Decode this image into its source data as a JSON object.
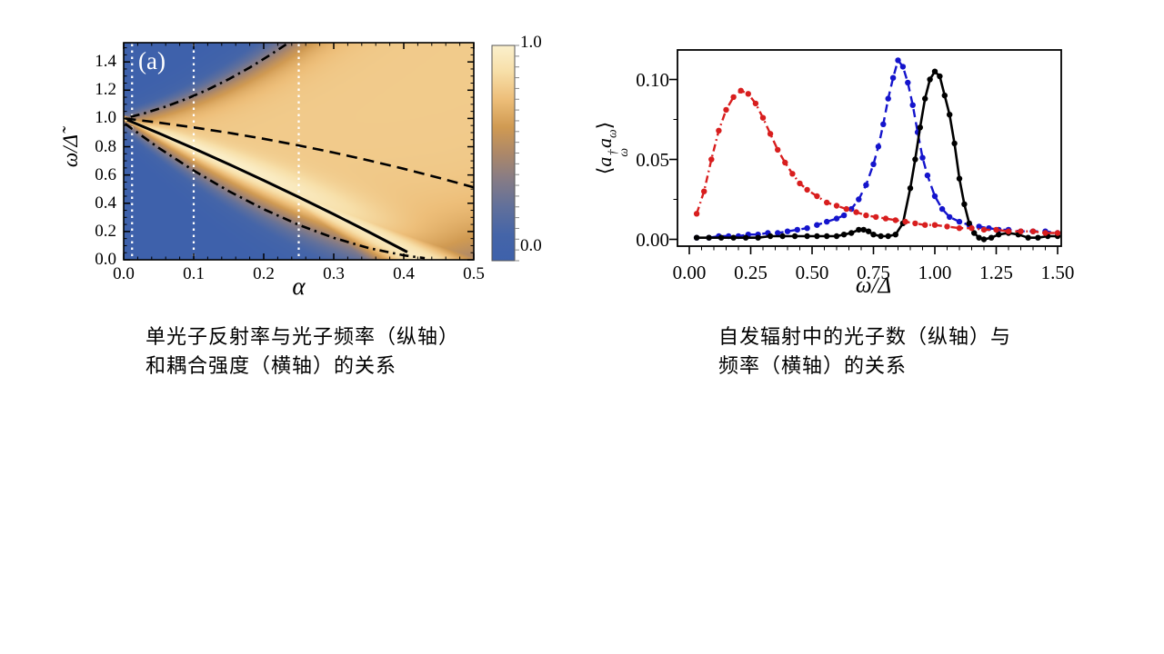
{
  "page": {
    "background": "#ffffff"
  },
  "left_figure": {
    "panel_label": "(a)",
    "xlabel": "α",
    "ylabel": "ω/Δ̃",
    "x_tick_labels": [
      "0.0",
      "0.1",
      "0.2",
      "0.3",
      "0.4",
      "0.5"
    ],
    "y_tick_labels": [
      "0.0",
      "0.2",
      "0.4",
      "0.6",
      "0.8",
      "1.0",
      "1.2",
      "1.4"
    ],
    "colorbar_top_label": "1.0",
    "colorbar_bottom_label": "0.0"
  },
  "right_figure": {
    "xlabel": "ω/Δ",
    "ylabel_parts": {
      "open": "⟨",
      "a1": "a",
      "dagger": "†",
      "sub1": "ω",
      "a2": "a",
      "sub2": "ω",
      "close": "⟩"
    },
    "x_tick_labels": [
      "0.00",
      "0.25",
      "0.50",
      "0.75",
      "1.00",
      "1.25",
      "1.50"
    ],
    "y_tick_labels": [
      "0.00",
      "0.05",
      "0.10"
    ]
  },
  "captions": {
    "left": {
      "lines": [
        "单光子反射率与光子频率（纵轴）",
        "和耦合强度（横轴）的关系"
      ]
    },
    "right": {
      "lines": [
        "自发辐射中的光子数（纵轴）与",
        "频率（横轴）的关系"
      ]
    }
  },
  "chart_data": [
    {
      "type": "heatmap",
      "title": "single-photon reflectance density plot",
      "xlabel": "α",
      "ylabel": "ω/Δ̃",
      "xlim": [
        0,
        0.5
      ],
      "ylim": [
        0,
        1.536
      ],
      "x_ticks": [
        0,
        0.1,
        0.2,
        0.3,
        0.4,
        0.5
      ],
      "y_ticks": [
        0,
        0.2,
        0.4,
        0.6,
        0.8,
        1.0,
        1.2,
        1.4
      ],
      "minor_x_step": 0.02,
      "minor_y_step": 0.05,
      "grid": false,
      "colorbar": {
        "min": 0.0,
        "max": 1.0,
        "tick_step": 0.05,
        "label_top": "1.0",
        "label_bottom": "0.0"
      },
      "colormap_stops": [
        [
          0.0,
          "#3E61AB"
        ],
        [
          0.12,
          "#4565A8"
        ],
        [
          0.25,
          "#61709B"
        ],
        [
          0.38,
          "#877C85"
        ],
        [
          0.5,
          "#AD8868"
        ],
        [
          0.62,
          "#D09A52"
        ],
        [
          0.75,
          "#EDBE79"
        ],
        [
          0.88,
          "#F7DFA9"
        ],
        [
          1.0,
          "#FBF0CC"
        ]
      ],
      "field_model": {
        "center_poly": [
          1,
          -2.05,
          -0.7
        ],
        "upper_poly": [
          1,
          1.1,
          5
        ],
        "lower": {
          "amp": 0.97,
          "scale": 0.47,
          "pow": 1.8
        },
        "edge_softness": [
          0.035,
          0.25
        ],
        "band_width": [
          0.025,
          0.5
        ],
        "band_amp": 0.95,
        "base_amp": 0.8,
        "band_boost": 0.25
      },
      "white_dotted_lines_x": [
        0.012,
        0.1,
        0.25
      ],
      "overlay_curves": [
        {
          "name": "upper-polariton-dashdot",
          "style": "dashdot",
          "color": "#000000",
          "points": [
            [
              0.01,
              1.0115
            ],
            [
              0.03,
              1.0375
            ],
            [
              0.06,
              1.084
            ],
            [
              0.09,
              1.1395
            ],
            [
              0.12,
              1.204
            ],
            [
              0.15,
              1.2775
            ],
            [
              0.18,
              1.36
            ],
            [
              0.21,
              1.4515
            ],
            [
              0.232,
              1.524
            ]
          ]
        },
        {
          "name": "dashed-branch",
          "style": "dashed",
          "color": "#000000",
          "points": [
            [
              0.002,
              1.0
            ],
            [
              0.05,
              0.9704
            ],
            [
              0.1,
              0.9365
            ],
            [
              0.15,
              0.8984
            ],
            [
              0.2,
              0.856
            ],
            [
              0.25,
              0.8094
            ],
            [
              0.3,
              0.7585
            ],
            [
              0.35,
              0.7034
            ],
            [
              0.4,
              0.644
            ],
            [
              0.45,
              0.5804
            ],
            [
              0.5,
              0.5125
            ]
          ]
        },
        {
          "name": "solid-branch",
          "style": "solid",
          "color": "#000000",
          "points": [
            [
              0.005,
              0.9897
            ],
            [
              0.05,
              0.8958
            ],
            [
              0.1,
              0.788
            ],
            [
              0.15,
              0.6768
            ],
            [
              0.2,
              0.562
            ],
            [
              0.25,
              0.4437
            ],
            [
              0.3,
              0.322
            ],
            [
              0.35,
              0.1967
            ],
            [
              0.405,
              0.0549
            ]
          ]
        },
        {
          "name": "lower-polariton-dashdot",
          "style": "dashdot",
          "color": "#000000",
          "points": [
            [
              0.002,
              0.9625
            ],
            [
              0.05,
              0.792
            ],
            [
              0.1,
              0.631
            ],
            [
              0.15,
              0.486
            ],
            [
              0.2,
              0.358
            ],
            [
              0.25,
              0.247
            ],
            [
              0.3,
              0.155
            ],
            [
              0.35,
              0.083
            ],
            [
              0.4,
              0.0315
            ],
            [
              0.43,
              0.0115
            ]
          ]
        }
      ]
    },
    {
      "type": "line",
      "title": "spontaneous-emission photon spectrum",
      "xlabel": "ω/Δ",
      "ylabel": "⟨a†ω aω⟩",
      "xlim": [
        -0.048,
        1.515
      ],
      "ylim": [
        -0.0043,
        0.1185
      ],
      "x_ticks": [
        0,
        0.25,
        0.5,
        0.75,
        1.0,
        1.25,
        1.5
      ],
      "y_ticks": [
        0,
        0.05,
        0.1
      ],
      "minor_x_step": 0.05,
      "minor_y_step": 0.025,
      "grid": false,
      "legend": "none",
      "series": [
        {
          "name": "blue-spectrum",
          "color": "#1414CC",
          "style": "dashed",
          "marker": "circle",
          "points": [
            [
              0.03,
              0.001
            ],
            [
              0.08,
              0.001
            ],
            [
              0.12,
              0.002
            ],
            [
              0.16,
              0.002
            ],
            [
              0.2,
              0.002
            ],
            [
              0.24,
              0.003
            ],
            [
              0.28,
              0.003
            ],
            [
              0.32,
              0.004
            ],
            [
              0.36,
              0.004
            ],
            [
              0.4,
              0.005
            ],
            [
              0.44,
              0.006
            ],
            [
              0.48,
              0.007
            ],
            [
              0.52,
              0.009
            ],
            [
              0.56,
              0.011
            ],
            [
              0.6,
              0.013
            ],
            [
              0.63,
              0.015
            ],
            [
              0.66,
              0.019
            ],
            [
              0.69,
              0.025
            ],
            [
              0.72,
              0.034
            ],
            [
              0.75,
              0.047
            ],
            [
              0.77,
              0.058
            ],
            [
              0.79,
              0.072
            ],
            [
              0.81,
              0.088
            ],
            [
              0.83,
              0.101
            ],
            [
              0.85,
              0.112
            ],
            [
              0.87,
              0.108
            ],
            [
              0.89,
              0.098
            ],
            [
              0.91,
              0.084
            ],
            [
              0.93,
              0.067
            ],
            [
              0.95,
              0.051
            ],
            [
              0.97,
              0.04
            ],
            [
              1.0,
              0.027
            ],
            [
              1.03,
              0.019
            ],
            [
              1.06,
              0.014
            ],
            [
              1.1,
              0.011
            ],
            [
              1.14,
              0.009
            ],
            [
              1.18,
              0.008
            ],
            [
              1.22,
              0.007
            ],
            [
              1.26,
              0.006
            ],
            [
              1.3,
              0.006
            ],
            [
              1.35,
              0.005
            ],
            [
              1.4,
              0.005
            ],
            [
              1.45,
              0.005
            ],
            [
              1.5,
              0.004
            ]
          ]
        },
        {
          "name": "black-spectrum",
          "color": "#000000",
          "style": "solid",
          "marker": "circle",
          "points": [
            [
              0.03,
              0.001
            ],
            [
              0.08,
              0.001
            ],
            [
              0.13,
              0.001
            ],
            [
              0.18,
              0.001
            ],
            [
              0.23,
              0.001
            ],
            [
              0.28,
              0.001
            ],
            [
              0.33,
              0.002
            ],
            [
              0.38,
              0.002
            ],
            [
              0.43,
              0.002
            ],
            [
              0.48,
              0.002
            ],
            [
              0.52,
              0.002
            ],
            [
              0.56,
              0.002
            ],
            [
              0.6,
              0.002
            ],
            [
              0.63,
              0.003
            ],
            [
              0.66,
              0.004
            ],
            [
              0.69,
              0.006
            ],
            [
              0.71,
              0.006
            ],
            [
              0.73,
              0.005
            ],
            [
              0.75,
              0.003
            ],
            [
              0.78,
              0.002
            ],
            [
              0.81,
              0.002
            ],
            [
              0.84,
              0.003
            ],
            [
              0.87,
              0.01
            ],
            [
              0.9,
              0.032
            ],
            [
              0.92,
              0.05
            ],
            [
              0.94,
              0.07
            ],
            [
              0.96,
              0.088
            ],
            [
              0.98,
              0.1
            ],
            [
              1.0,
              0.105
            ],
            [
              1.02,
              0.102
            ],
            [
              1.04,
              0.09
            ],
            [
              1.06,
              0.078
            ],
            [
              1.08,
              0.06
            ],
            [
              1.1,
              0.038
            ],
            [
              1.12,
              0.022
            ],
            [
              1.14,
              0.01
            ],
            [
              1.16,
              0.004
            ],
            [
              1.18,
              0.001
            ],
            [
              1.2,
              0.0
            ],
            [
              1.23,
              0.001
            ],
            [
              1.26,
              0.003
            ],
            [
              1.3,
              0.004
            ],
            [
              1.34,
              0.003
            ],
            [
              1.38,
              0.001
            ],
            [
              1.42,
              0.001
            ],
            [
              1.46,
              0.002
            ],
            [
              1.5,
              0.002
            ]
          ]
        },
        {
          "name": "red-spectrum",
          "color": "#D81E1E",
          "style": "dashdot",
          "marker": "circle",
          "points": [
            [
              0.03,
              0.016
            ],
            [
              0.06,
              0.03
            ],
            [
              0.09,
              0.05
            ],
            [
              0.12,
              0.068
            ],
            [
              0.15,
              0.081
            ],
            [
              0.18,
              0.089
            ],
            [
              0.21,
              0.093
            ],
            [
              0.24,
              0.091
            ],
            [
              0.27,
              0.085
            ],
            [
              0.3,
              0.076
            ],
            [
              0.33,
              0.066
            ],
            [
              0.36,
              0.056
            ],
            [
              0.39,
              0.048
            ],
            [
              0.42,
              0.041
            ],
            [
              0.45,
              0.035
            ],
            [
              0.48,
              0.031
            ],
            [
              0.52,
              0.027
            ],
            [
              0.56,
              0.023
            ],
            [
              0.6,
              0.021
            ],
            [
              0.64,
              0.019
            ],
            [
              0.68,
              0.017
            ],
            [
              0.72,
              0.015
            ],
            [
              0.76,
              0.014
            ],
            [
              0.8,
              0.013
            ],
            [
              0.84,
              0.012
            ],
            [
              0.88,
              0.011
            ],
            [
              0.92,
              0.01
            ],
            [
              0.96,
              0.009
            ],
            [
              1.0,
              0.009
            ],
            [
              1.05,
              0.008
            ],
            [
              1.1,
              0.007
            ],
            [
              1.15,
              0.007
            ],
            [
              1.2,
              0.006
            ],
            [
              1.25,
              0.006
            ],
            [
              1.3,
              0.005
            ],
            [
              1.35,
              0.005
            ],
            [
              1.4,
              0.005
            ],
            [
              1.45,
              0.004
            ],
            [
              1.5,
              0.004
            ]
          ]
        }
      ]
    }
  ]
}
